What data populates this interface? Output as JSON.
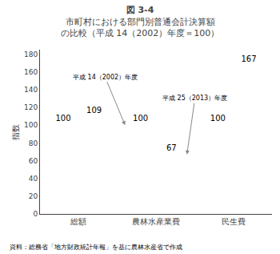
{
  "chart_data": {
    "type": "bar",
    "title": "図 3-4",
    "subtitle": "市町村における部門別普通会計決算額\nの比較（平成 14（2002）年度＝100）",
    "ylabel": "指数",
    "categories": [
      "総額",
      "農林水産業費",
      "民生費"
    ],
    "series": [
      {
        "name": "平成 14（2002）年度",
        "color": "#90c978",
        "values": [
          100,
          100,
          100
        ]
      },
      {
        "name": "平成 25（2013）年度",
        "color": "#f0a070",
        "values": [
          109,
          67,
          167
        ]
      }
    ],
    "ylim": [
      0,
      185
    ],
    "yticks": [
      0,
      20,
      40,
      60,
      80,
      100,
      120,
      140,
      160,
      180
    ],
    "grid": false,
    "data_labels": true,
    "annotations": [
      "平成 14（2002）年度",
      "平成 25（2013）年度"
    ],
    "source": "資料：総務省「地方財政統計年報」を基に農林水産省で作成"
  }
}
